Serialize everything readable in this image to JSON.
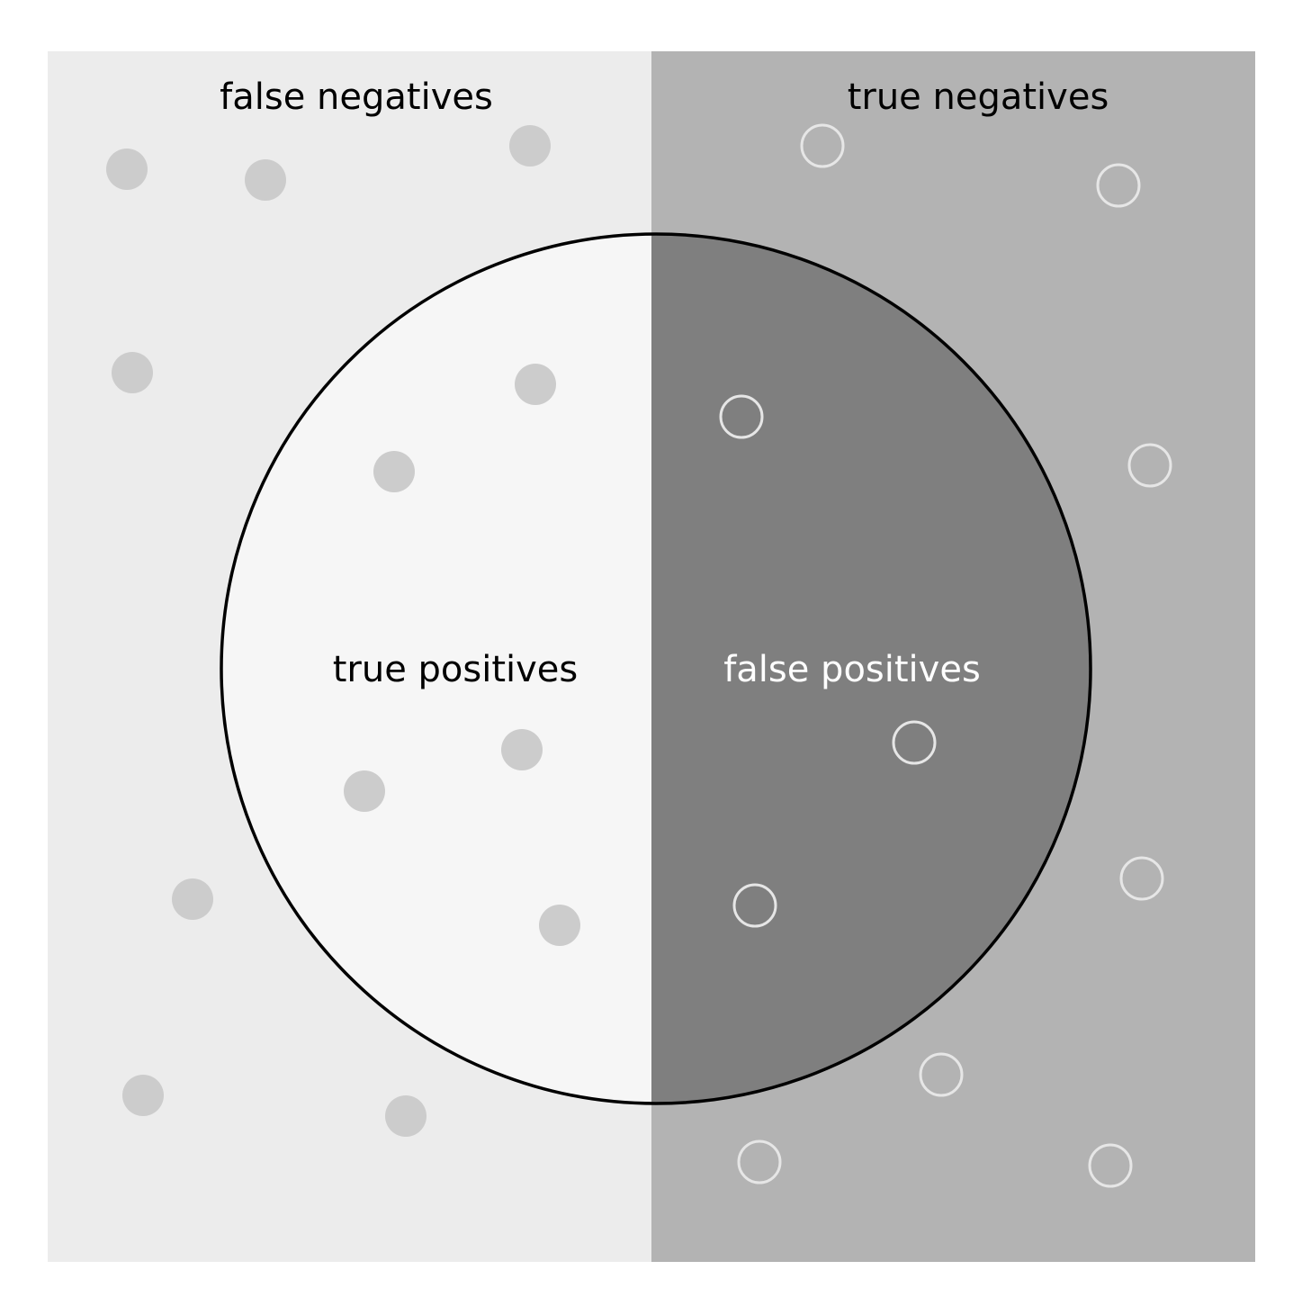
{
  "labels": {
    "false_negatives": "false negatives",
    "true_negatives": "true negatives",
    "true_positives": "true positives",
    "false_positives": "false positives"
  },
  "colors": {
    "background": "#ffffff",
    "left_panel": "#ececec",
    "right_panel": "#b3b3b3",
    "circle_left": "#f6f6f6",
    "circle_right": "#7f7f7f",
    "circle_outline": "#000000",
    "filled_dot": "#cccccc",
    "hollow_dot_stroke": "#e6e6e6",
    "text_dark": "#000000",
    "text_light": "#ffffff"
  },
  "icons": {
    "filled_dot": "relevant-element-dot",
    "hollow_dot": "irrelevant-element-dot"
  }
}
